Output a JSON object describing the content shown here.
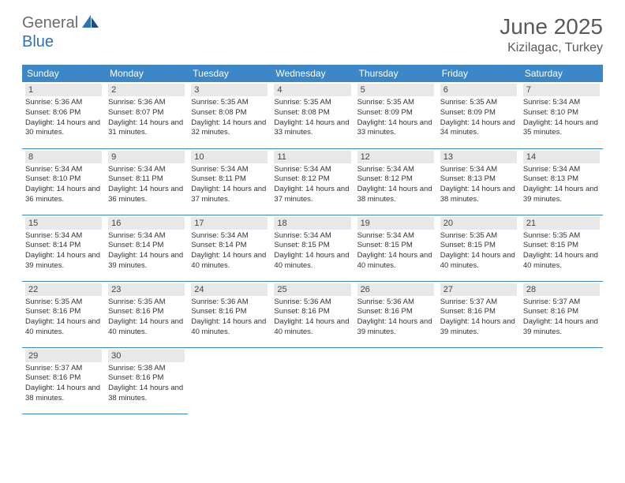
{
  "brand": {
    "part1": "General",
    "part2": "Blue"
  },
  "title": "June 2025",
  "location": "Kizilagac, Turkey",
  "colors": {
    "header_bg": "#3b87c8",
    "header_fg": "#ffffff",
    "daynum_bg": "#e8e8e8",
    "border": "#3b87c8",
    "text": "#333333",
    "title_color": "#5a5a5a",
    "brand_gray": "#6b6b6b",
    "brand_blue": "#2d72b5"
  },
  "weekdays": [
    "Sunday",
    "Monday",
    "Tuesday",
    "Wednesday",
    "Thursday",
    "Friday",
    "Saturday"
  ],
  "weeks": [
    [
      {
        "n": "1",
        "sunrise": "5:36 AM",
        "sunset": "8:06 PM",
        "dl": "14 hours and 30 minutes."
      },
      {
        "n": "2",
        "sunrise": "5:36 AM",
        "sunset": "8:07 PM",
        "dl": "14 hours and 31 minutes."
      },
      {
        "n": "3",
        "sunrise": "5:35 AM",
        "sunset": "8:08 PM",
        "dl": "14 hours and 32 minutes."
      },
      {
        "n": "4",
        "sunrise": "5:35 AM",
        "sunset": "8:08 PM",
        "dl": "14 hours and 33 minutes."
      },
      {
        "n": "5",
        "sunrise": "5:35 AM",
        "sunset": "8:09 PM",
        "dl": "14 hours and 33 minutes."
      },
      {
        "n": "6",
        "sunrise": "5:35 AM",
        "sunset": "8:09 PM",
        "dl": "14 hours and 34 minutes."
      },
      {
        "n": "7",
        "sunrise": "5:34 AM",
        "sunset": "8:10 PM",
        "dl": "14 hours and 35 minutes."
      }
    ],
    [
      {
        "n": "8",
        "sunrise": "5:34 AM",
        "sunset": "8:10 PM",
        "dl": "14 hours and 36 minutes."
      },
      {
        "n": "9",
        "sunrise": "5:34 AM",
        "sunset": "8:11 PM",
        "dl": "14 hours and 36 minutes."
      },
      {
        "n": "10",
        "sunrise": "5:34 AM",
        "sunset": "8:11 PM",
        "dl": "14 hours and 37 minutes."
      },
      {
        "n": "11",
        "sunrise": "5:34 AM",
        "sunset": "8:12 PM",
        "dl": "14 hours and 37 minutes."
      },
      {
        "n": "12",
        "sunrise": "5:34 AM",
        "sunset": "8:12 PM",
        "dl": "14 hours and 38 minutes."
      },
      {
        "n": "13",
        "sunrise": "5:34 AM",
        "sunset": "8:13 PM",
        "dl": "14 hours and 38 minutes."
      },
      {
        "n": "14",
        "sunrise": "5:34 AM",
        "sunset": "8:13 PM",
        "dl": "14 hours and 39 minutes."
      }
    ],
    [
      {
        "n": "15",
        "sunrise": "5:34 AM",
        "sunset": "8:14 PM",
        "dl": "14 hours and 39 minutes."
      },
      {
        "n": "16",
        "sunrise": "5:34 AM",
        "sunset": "8:14 PM",
        "dl": "14 hours and 39 minutes."
      },
      {
        "n": "17",
        "sunrise": "5:34 AM",
        "sunset": "8:14 PM",
        "dl": "14 hours and 40 minutes."
      },
      {
        "n": "18",
        "sunrise": "5:34 AM",
        "sunset": "8:15 PM",
        "dl": "14 hours and 40 minutes."
      },
      {
        "n": "19",
        "sunrise": "5:34 AM",
        "sunset": "8:15 PM",
        "dl": "14 hours and 40 minutes."
      },
      {
        "n": "20",
        "sunrise": "5:35 AM",
        "sunset": "8:15 PM",
        "dl": "14 hours and 40 minutes."
      },
      {
        "n": "21",
        "sunrise": "5:35 AM",
        "sunset": "8:15 PM",
        "dl": "14 hours and 40 minutes."
      }
    ],
    [
      {
        "n": "22",
        "sunrise": "5:35 AM",
        "sunset": "8:16 PM",
        "dl": "14 hours and 40 minutes."
      },
      {
        "n": "23",
        "sunrise": "5:35 AM",
        "sunset": "8:16 PM",
        "dl": "14 hours and 40 minutes."
      },
      {
        "n": "24",
        "sunrise": "5:36 AM",
        "sunset": "8:16 PM",
        "dl": "14 hours and 40 minutes."
      },
      {
        "n": "25",
        "sunrise": "5:36 AM",
        "sunset": "8:16 PM",
        "dl": "14 hours and 40 minutes."
      },
      {
        "n": "26",
        "sunrise": "5:36 AM",
        "sunset": "8:16 PM",
        "dl": "14 hours and 39 minutes."
      },
      {
        "n": "27",
        "sunrise": "5:37 AM",
        "sunset": "8:16 PM",
        "dl": "14 hours and 39 minutes."
      },
      {
        "n": "28",
        "sunrise": "5:37 AM",
        "sunset": "8:16 PM",
        "dl": "14 hours and 39 minutes."
      }
    ],
    [
      {
        "n": "29",
        "sunrise": "5:37 AM",
        "sunset": "8:16 PM",
        "dl": "14 hours and 38 minutes."
      },
      {
        "n": "30",
        "sunrise": "5:38 AM",
        "sunset": "8:16 PM",
        "dl": "14 hours and 38 minutes."
      },
      null,
      null,
      null,
      null,
      null
    ]
  ],
  "labels": {
    "sunrise_prefix": "Sunrise: ",
    "sunset_prefix": "Sunset: ",
    "daylight_prefix": "Daylight: "
  }
}
